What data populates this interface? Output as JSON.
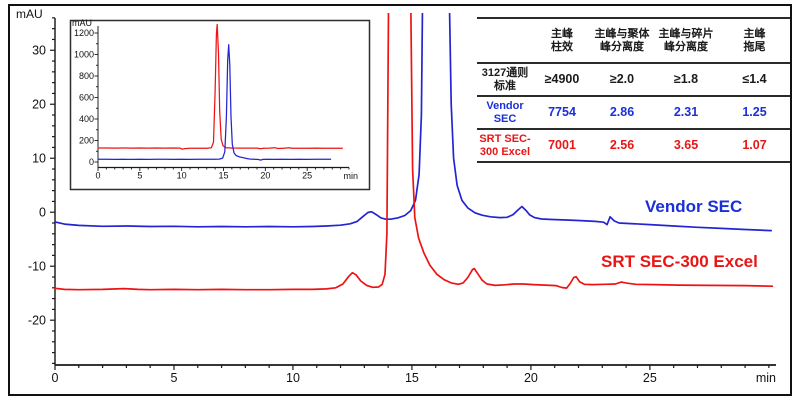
{
  "colors": {
    "blue": "#2424d2",
    "red": "#ee1313",
    "blue_text": "#1b2fd9",
    "red_text": "#e81616",
    "axis": "#1a1a1a",
    "table_line": "#2b2b2b",
    "text": "#111111"
  },
  "trace_labels": {
    "vendor": "Vendor SEC",
    "srt": "SRT SEC-300 Excel"
  },
  "table": {
    "col_headers": [
      [
        "主峰",
        "柱效"
      ],
      [
        "主峰与聚体",
        "峰分离度"
      ],
      [
        "主峰与碎片",
        "峰分离度"
      ],
      [
        "主峰",
        "拖尾"
      ]
    ],
    "rows": [
      {
        "label": [
          "3127通则",
          "标准"
        ],
        "values": [
          "≥4900",
          "≥2.0",
          "≥1.8",
          "≤1.4"
        ]
      },
      {
        "label": [
          "Vendor",
          "SEC"
        ],
        "values": [
          "7754",
          "2.86",
          "2.31",
          "1.25"
        ]
      },
      {
        "label": [
          "SRT SEC-",
          "300 Excel"
        ],
        "values": [
          "7001",
          "2.56",
          "3.65",
          "1.07"
        ]
      }
    ]
  },
  "chart_data": [
    {
      "id": "main",
      "type": "line",
      "title": "",
      "xlabel": "min",
      "ylabel": "mAU",
      "xlim": [
        0,
        30.3
      ],
      "ylim": [
        -28.3,
        36.9
      ],
      "xticks": [
        0,
        5,
        10,
        15,
        20,
        25
      ],
      "x_minor_step": 1,
      "yticks": [
        30,
        20,
        10,
        0,
        -10,
        -20
      ],
      "y_minor_step": 2,
      "grid": false,
      "legend": "inline-labels",
      "series": [
        {
          "name": "Vendor SEC",
          "color": "blue",
          "points": [
            [
              0,
              -1.8
            ],
            [
              0.4,
              -2.2
            ],
            [
              1,
              -2.45
            ],
            [
              2,
              -2.6
            ],
            [
              3,
              -2.55
            ],
            [
              4,
              -2.65
            ],
            [
              5,
              -2.6
            ],
            [
              6,
              -2.7
            ],
            [
              7,
              -2.65
            ],
            [
              8,
              -2.7
            ],
            [
              9,
              -2.65
            ],
            [
              10,
              -2.7
            ],
            [
              10.8,
              -2.65
            ],
            [
              11.4,
              -2.55
            ],
            [
              12,
              -2.4
            ],
            [
              12.4,
              -2.15
            ],
            [
              12.7,
              -1.7
            ],
            [
              12.95,
              -0.75
            ],
            [
              13.15,
              -0.05
            ],
            [
              13.3,
              0.1
            ],
            [
              13.5,
              -0.45
            ],
            [
              13.7,
              -1.05
            ],
            [
              13.9,
              -1.3
            ],
            [
              14.1,
              -1.3
            ],
            [
              14.4,
              -1.05
            ],
            [
              14.7,
              -0.6
            ],
            [
              14.95,
              0.3
            ],
            [
              15.15,
              2.2
            ],
            [
              15.3,
              7
            ],
            [
              15.4,
              18
            ],
            [
              15.45,
              40
            ],
            [
              16.57,
              40
            ],
            [
              16.65,
              20
            ],
            [
              16.75,
              10
            ],
            [
              16.9,
              5
            ],
            [
              17.1,
              2.2
            ],
            [
              17.35,
              0.8
            ],
            [
              17.65,
              -0.1
            ],
            [
              17.95,
              -0.55
            ],
            [
              18.3,
              -0.85
            ],
            [
              18.7,
              -1.0
            ],
            [
              19,
              -0.95
            ],
            [
              19.25,
              -0.45
            ],
            [
              19.45,
              0.4
            ],
            [
              19.62,
              1.05
            ],
            [
              19.8,
              0.3
            ],
            [
              19.95,
              -0.5
            ],
            [
              20.15,
              -1.0
            ],
            [
              20.45,
              -1.25
            ],
            [
              20.9,
              -1.35
            ],
            [
              21.5,
              -1.45
            ],
            [
              22.1,
              -1.55
            ],
            [
              22.7,
              -1.7
            ],
            [
              23.05,
              -1.85
            ],
            [
              23.2,
              -2.3
            ],
            [
              23.33,
              -0.85
            ],
            [
              23.5,
              -1.6
            ],
            [
              23.7,
              -2.0
            ],
            [
              24.2,
              -2.1
            ],
            [
              25,
              -2.3
            ],
            [
              26,
              -2.55
            ],
            [
              27,
              -2.8
            ],
            [
              28,
              -3.0
            ],
            [
              29,
              -3.2
            ],
            [
              30.1,
              -3.4
            ]
          ]
        },
        {
          "name": "SRT SEC-300 Excel",
          "color": "red",
          "points": [
            [
              0,
              -14.1
            ],
            [
              0.4,
              -14.3
            ],
            [
              1,
              -14.35
            ],
            [
              2,
              -14.3
            ],
            [
              2.9,
              -14.15
            ],
            [
              3.5,
              -14.3
            ],
            [
              4,
              -14.35
            ],
            [
              5,
              -14.3
            ],
            [
              6,
              -14.35
            ],
            [
              7,
              -14.3
            ],
            [
              8,
              -14.35
            ],
            [
              9,
              -14.35
            ],
            [
              10,
              -14.3
            ],
            [
              10.8,
              -14.3
            ],
            [
              11.4,
              -14.2
            ],
            [
              11.8,
              -14.0
            ],
            [
              12.1,
              -13.3
            ],
            [
              12.35,
              -11.85
            ],
            [
              12.5,
              -11.2
            ],
            [
              12.65,
              -11.6
            ],
            [
              12.85,
              -12.75
            ],
            [
              13.1,
              -13.55
            ],
            [
              13.35,
              -13.9
            ],
            [
              13.6,
              -13.85
            ],
            [
              13.75,
              -13.35
            ],
            [
              13.87,
              -11.5
            ],
            [
              13.95,
              -4
            ],
            [
              14.02,
              40
            ],
            [
              14.95,
              40
            ],
            [
              15.03,
              8
            ],
            [
              15.12,
              -1
            ],
            [
              15.28,
              -4.8
            ],
            [
              15.5,
              -7.5
            ],
            [
              15.75,
              -9.8
            ],
            [
              16.05,
              -11.5
            ],
            [
              16.35,
              -12.5
            ],
            [
              16.65,
              -13.1
            ],
            [
              16.95,
              -13.35
            ],
            [
              17.15,
              -13.1
            ],
            [
              17.35,
              -12.1
            ],
            [
              17.55,
              -10.6
            ],
            [
              17.62,
              -10.45
            ],
            [
              17.75,
              -11.3
            ],
            [
              17.95,
              -12.6
            ],
            [
              18.15,
              -13.3
            ],
            [
              18.5,
              -13.55
            ],
            [
              18.9,
              -13.45
            ],
            [
              19.3,
              -13.3
            ],
            [
              19.7,
              -13.3
            ],
            [
              20.1,
              -13.4
            ],
            [
              20.6,
              -13.5
            ],
            [
              21.05,
              -13.6
            ],
            [
              21.3,
              -13.95
            ],
            [
              21.5,
              -14.05
            ],
            [
              21.65,
              -13.2
            ],
            [
              21.8,
              -12.1
            ],
            [
              21.9,
              -11.95
            ],
            [
              22.05,
              -12.9
            ],
            [
              22.25,
              -13.35
            ],
            [
              22.6,
              -13.4
            ],
            [
              23.1,
              -13.35
            ],
            [
              23.55,
              -13.3
            ],
            [
              23.8,
              -12.95
            ],
            [
              24.05,
              -13.15
            ],
            [
              24.4,
              -13.35
            ],
            [
              25.2,
              -13.4
            ],
            [
              26.2,
              -13.5
            ],
            [
              27.5,
              -13.55
            ],
            [
              29,
              -13.6
            ],
            [
              30.15,
              -13.7
            ]
          ]
        }
      ]
    },
    {
      "id": "inset",
      "type": "line",
      "title": "",
      "xlabel": "min",
      "ylabel": "mAU",
      "xlim": [
        0,
        30
      ],
      "ylim": [
        -51.2,
        1283.7
      ],
      "xticks": [
        0,
        5,
        10,
        15,
        20,
        25
      ],
      "x_minor_step": 1,
      "yticks": [
        0,
        200,
        400,
        600,
        800,
        1000,
        1200
      ],
      "y_minor_step": 100,
      "grid": false,
      "legend": "none",
      "series": [
        {
          "name": "SRT SEC-300 Excel (full scale)",
          "color": "red",
          "points": [
            [
              0,
              130
            ],
            [
              1,
              130
            ],
            [
              2,
              129
            ],
            [
              3,
              130
            ],
            [
              4,
              129
            ],
            [
              5,
              130
            ],
            [
              6,
              129
            ],
            [
              7,
              130
            ],
            [
              8,
              129
            ],
            [
              9,
              130
            ],
            [
              9.85,
              129
            ],
            [
              10.05,
              119
            ],
            [
              10.35,
              125
            ],
            [
              11,
              127
            ],
            [
              12,
              128
            ],
            [
              13,
              128
            ],
            [
              13.55,
              133
            ],
            [
              13.8,
              185
            ],
            [
              14.0,
              650
            ],
            [
              14.15,
              1190
            ],
            [
              14.25,
              1280
            ],
            [
              14.4,
              1010
            ],
            [
              14.55,
              470
            ],
            [
              14.72,
              210
            ],
            [
              14.95,
              150
            ],
            [
              15.3,
              133
            ],
            [
              16,
              130
            ],
            [
              17,
              129
            ],
            [
              18,
              129
            ],
            [
              19,
              129
            ],
            [
              19.45,
              124
            ],
            [
              19.75,
              128
            ],
            [
              20.5,
              129
            ],
            [
              21.15,
              133
            ],
            [
              21.5,
              126
            ],
            [
              22.2,
              128
            ],
            [
              22.85,
              132
            ],
            [
              23.2,
              127
            ],
            [
              24,
              128
            ],
            [
              25,
              128
            ],
            [
              26,
              129
            ],
            [
              27,
              128
            ],
            [
              28,
              128
            ],
            [
              29.2,
              128
            ]
          ]
        },
        {
          "name": "Vendor SEC (full scale)",
          "color": "blue",
          "points": [
            [
              0,
              25
            ],
            [
              1,
              25
            ],
            [
              2,
              24
            ],
            [
              3,
              25
            ],
            [
              4,
              24
            ],
            [
              5,
              25
            ],
            [
              6,
              24
            ],
            [
              7,
              25
            ],
            [
              8,
              25
            ],
            [
              9,
              24
            ],
            [
              10,
              25
            ],
            [
              11,
              24
            ],
            [
              12,
              25
            ],
            [
              13,
              25
            ],
            [
              13.9,
              26
            ],
            [
              14.5,
              27
            ],
            [
              14.9,
              36
            ],
            [
              15.15,
              95
            ],
            [
              15.35,
              420
            ],
            [
              15.5,
              950
            ],
            [
              15.62,
              1090
            ],
            [
              15.75,
              900
            ],
            [
              15.9,
              420
            ],
            [
              16.05,
              165
            ],
            [
              16.25,
              85
            ],
            [
              16.5,
              60
            ],
            [
              16.8,
              50
            ],
            [
              17.1,
              44
            ],
            [
              17.4,
              40
            ],
            [
              17.7,
              33
            ],
            [
              18.1,
              28
            ],
            [
              18.6,
              26
            ],
            [
              19.2,
              23
            ],
            [
              19.45,
              18
            ],
            [
              19.7,
              24
            ],
            [
              20.3,
              25
            ],
            [
              21,
              24
            ],
            [
              22,
              25
            ],
            [
              23,
              24
            ],
            [
              24,
              25
            ],
            [
              25,
              24
            ],
            [
              26,
              25
            ],
            [
              27,
              25
            ],
            [
              27.8,
              25
            ]
          ]
        }
      ]
    }
  ]
}
